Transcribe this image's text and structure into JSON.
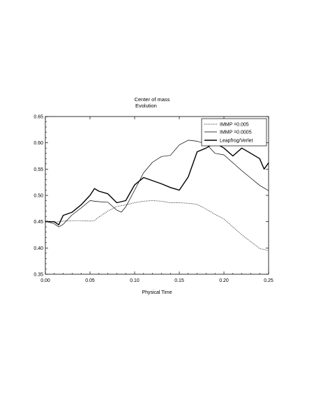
{
  "chart_data": {
    "type": "line",
    "title": "Center of mass",
    "subtitle": "Evolution",
    "xlabel": "Physical Time",
    "ylabel": "",
    "xlim": [
      0.0,
      0.25
    ],
    "ylim": [
      0.35,
      0.65
    ],
    "xticks": [
      "0.00",
      "0.05",
      "0.10",
      "0.15",
      "0.20",
      "0.25"
    ],
    "yticks": [
      "0.35",
      "0.40",
      "0.45",
      "0.50",
      "0.55",
      "0.60",
      "0.65"
    ],
    "grid": false,
    "legend_position": "top-right",
    "series": [
      {
        "name": "IMMP =0.005",
        "style": "dotted",
        "x": [
          0.0,
          0.01,
          0.02,
          0.03,
          0.04,
          0.05,
          0.055,
          0.06,
          0.07,
          0.08,
          0.09,
          0.1,
          0.11,
          0.12,
          0.13,
          0.14,
          0.15,
          0.16,
          0.17,
          0.18,
          0.19,
          0.2,
          0.21,
          0.22,
          0.23,
          0.24,
          0.25
        ],
        "y": [
          0.452,
          0.449,
          0.451,
          0.452,
          0.452,
          0.451,
          0.452,
          0.459,
          0.47,
          0.479,
          0.482,
          0.486,
          0.489,
          0.49,
          0.489,
          0.486,
          0.486,
          0.485,
          0.483,
          0.474,
          0.464,
          0.455,
          0.44,
          0.425,
          0.412,
          0.399,
          0.395
        ]
      },
      {
        "name": "IMMP =0.0005",
        "style": "thin",
        "x": [
          0.0,
          0.01,
          0.015,
          0.02,
          0.03,
          0.04,
          0.05,
          0.06,
          0.07,
          0.08,
          0.085,
          0.09,
          0.1,
          0.11,
          0.12,
          0.13,
          0.14,
          0.15,
          0.16,
          0.17,
          0.18,
          0.19,
          0.2,
          0.21,
          0.22,
          0.23,
          0.24,
          0.25
        ],
        "y": [
          0.451,
          0.446,
          0.44,
          0.445,
          0.463,
          0.476,
          0.49,
          0.488,
          0.487,
          0.472,
          0.468,
          0.478,
          0.51,
          0.543,
          0.563,
          0.574,
          0.576,
          0.596,
          0.605,
          0.603,
          0.598,
          0.58,
          0.577,
          0.562,
          0.547,
          0.533,
          0.519,
          0.509
        ]
      },
      {
        "name": "Leapfrog/Verlet",
        "style": "thick",
        "x": [
          0.0,
          0.01,
          0.015,
          0.02,
          0.03,
          0.04,
          0.05,
          0.055,
          0.06,
          0.07,
          0.08,
          0.09,
          0.1,
          0.11,
          0.12,
          0.13,
          0.14,
          0.15,
          0.16,
          0.17,
          0.18,
          0.19,
          0.2,
          0.21,
          0.22,
          0.23,
          0.24,
          0.245,
          0.25
        ],
        "y": [
          0.45,
          0.45,
          0.444,
          0.462,
          0.468,
          0.482,
          0.5,
          0.513,
          0.508,
          0.503,
          0.486,
          0.49,
          0.52,
          0.534,
          0.528,
          0.522,
          0.515,
          0.51,
          0.535,
          0.583,
          0.59,
          0.6,
          0.59,
          0.575,
          0.59,
          0.58,
          0.57,
          0.55,
          0.562
        ]
      }
    ]
  }
}
